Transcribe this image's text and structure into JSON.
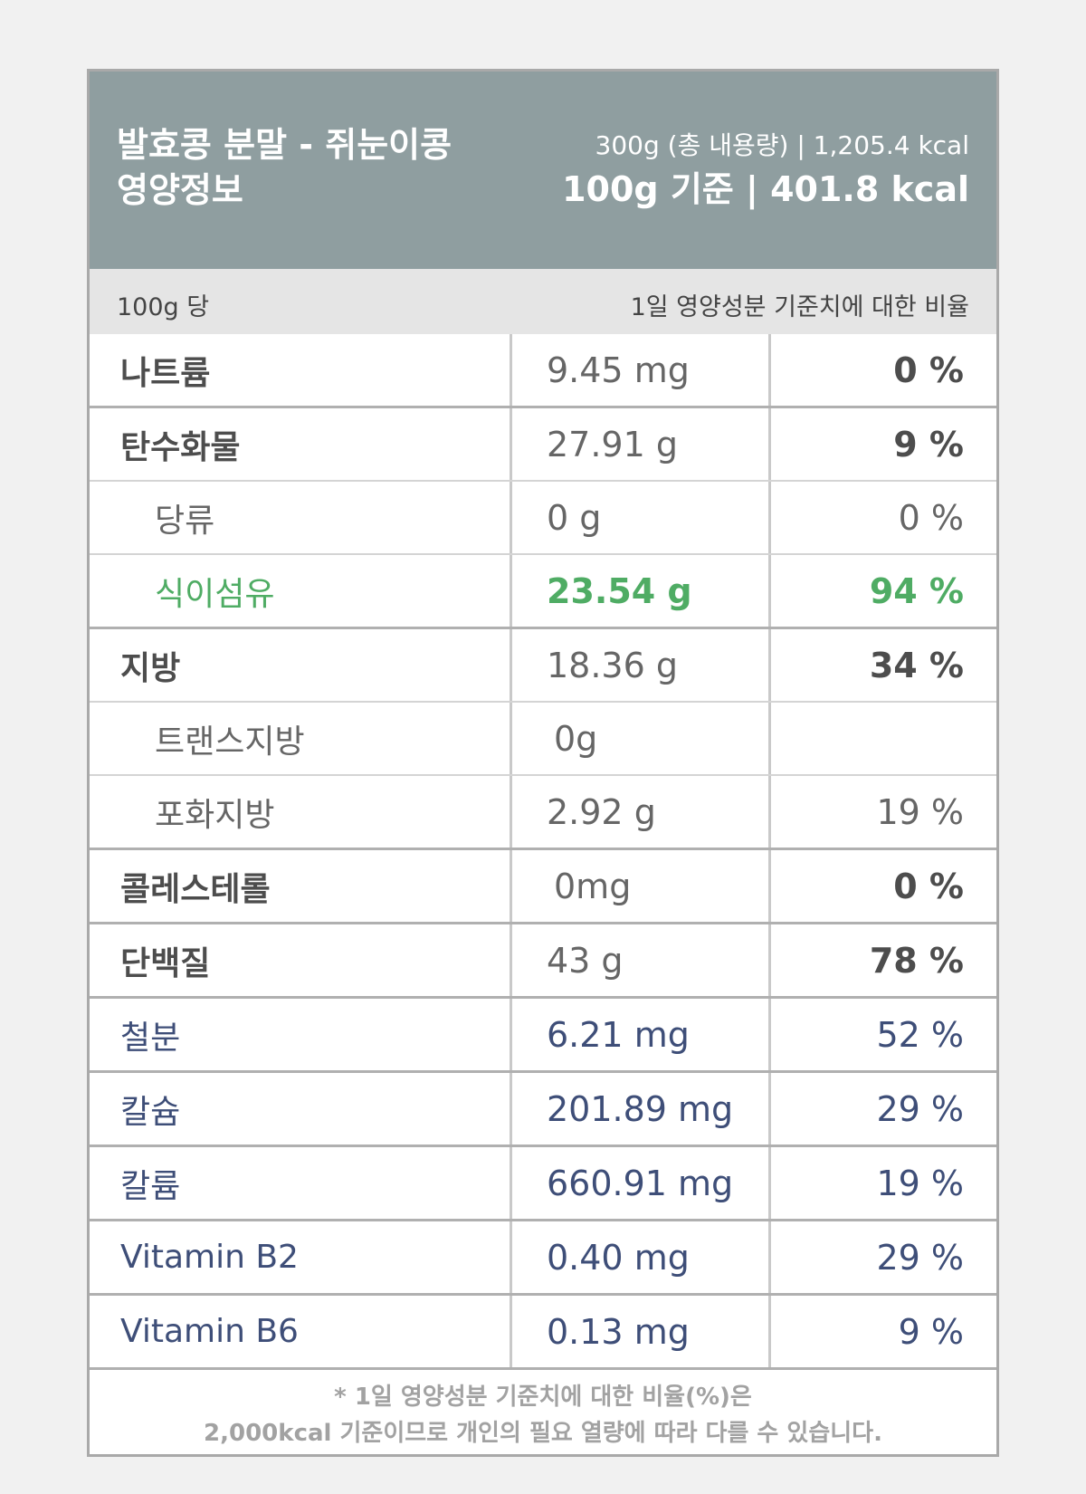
{
  "header": {
    "title_line1": "발효콩 분말 - 쥐눈이콩",
    "title_line2": "영양정보",
    "total": "300g (총 내용량) | 1,205.4 kcal",
    "per": "100g 기준 | 401.8 kcal"
  },
  "subhead": {
    "left": "100g 당",
    "right": "1일 영양성분 기준치에 대한 비율"
  },
  "rows": [
    {
      "name": "나트륨",
      "amount": "9.45 mg",
      "pct": "0 %"
    },
    {
      "name": "탄수화물",
      "amount": "27.91 g",
      "pct": "9 %"
    },
    {
      "name": "당류",
      "amount": "0 g",
      "pct": "0 %"
    },
    {
      "name": "식이섬유",
      "amount": "23.54 g",
      "pct": "94 %"
    },
    {
      "name": "지방",
      "amount": "18.36 g",
      "pct": "34 %"
    },
    {
      "name": "트랜스지방",
      "amount": "0g",
      "pct": ""
    },
    {
      "name": "포화지방",
      "amount": "2.92 g",
      "pct": "19 %"
    },
    {
      "name": "콜레스테롤",
      "amount": "0mg",
      "pct": "0 %"
    },
    {
      "name": "단백질",
      "amount": "43 g",
      "pct": "78 %"
    },
    {
      "name": "철분",
      "amount": "6.21 mg",
      "pct": "52 %"
    },
    {
      "name": "칼슘",
      "amount": "201.89 mg",
      "pct": "29 %"
    },
    {
      "name": "칼륨",
      "amount": "660.91 mg",
      "pct": "19 %"
    },
    {
      "name": "Vitamin B2",
      "amount": "0.40 mg",
      "pct": "29 %"
    },
    {
      "name": "Vitamin B6",
      "amount": "0.13 mg",
      "pct": "9 %"
    }
  ],
  "footer": {
    "line1": "* 1일 영양성분 기준치에 대한 비율(%)은",
    "line2": "2,000kcal 기준이므로 개인의 필요 열량에 따라 다를 수 있습니다."
  },
  "colors": {
    "header_bg": "#8f9ea0",
    "highlight_green": "#4fac64",
    "mineral_navy": "#3e4e78"
  }
}
